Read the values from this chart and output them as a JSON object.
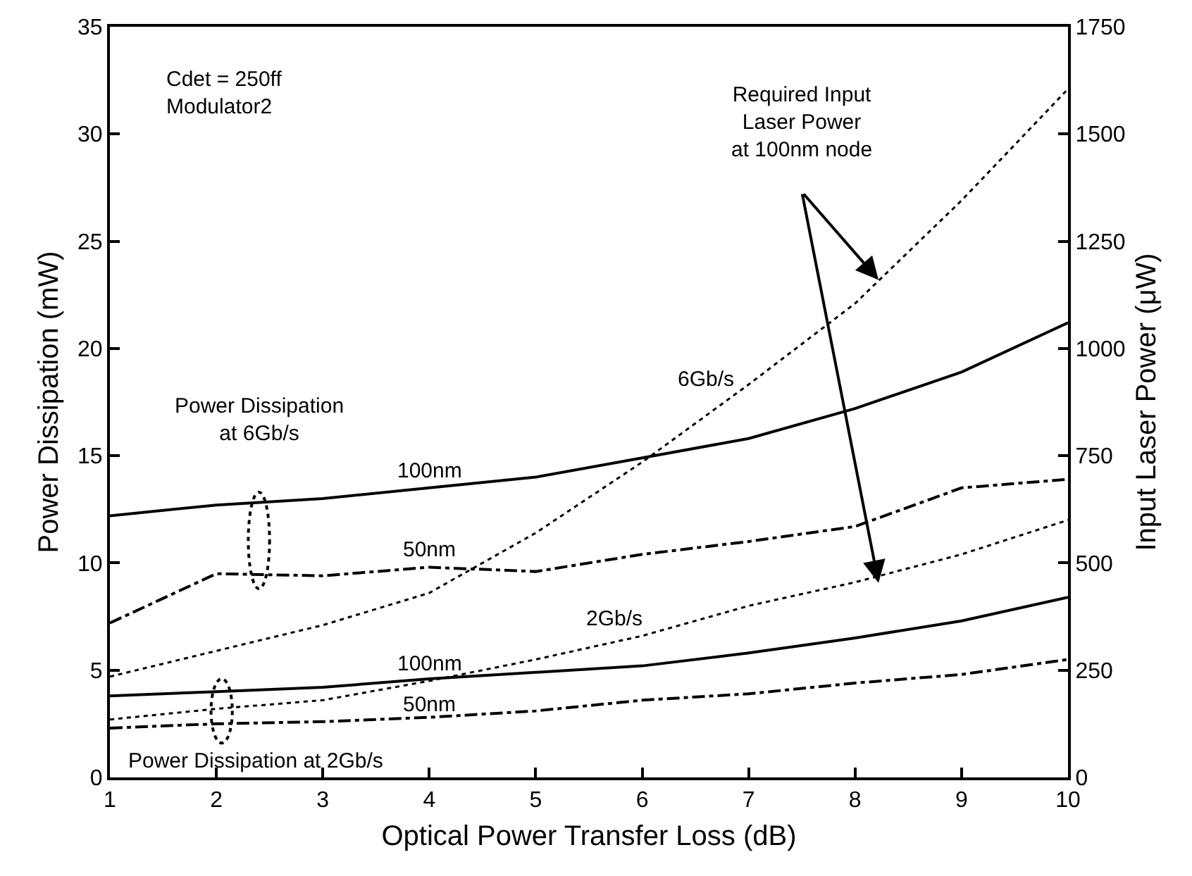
{
  "chart_data": {
    "type": "line",
    "xlabel": "Optical Power Transfer Loss (dB)",
    "ylabel": "Power Dissipation (mW)",
    "y2label": "Input Laser Power (μW)",
    "x": [
      1,
      2,
      3,
      4,
      5,
      6,
      7,
      8,
      9,
      10
    ],
    "series": [
      {
        "name": "100nm",
        "color": "#000000",
        "line_style": "solid",
        "values": [
          12.2,
          12.7,
          13.0,
          13.5,
          14.0,
          14.9,
          15.8,
          17.2,
          18.9,
          21.2
        ]
      },
      {
        "name": "50nm",
        "color": "#000000",
        "line_style": "dashed",
        "values": [
          7.2,
          9.5,
          9.4,
          9.8,
          9.6,
          10.4,
          11.0,
          11.7,
          13.5,
          13.9
        ]
      },
      {
        "name": "100nm",
        "color": "#000000",
        "line_style": "solid",
        "values": [
          3.8,
          4.0,
          4.2,
          4.6,
          4.9,
          5.2,
          5.8,
          6.5,
          7.3,
          8.4
        ]
      },
      {
        "name": "50nm",
        "color": "#000000",
        "line_style": "dashed",
        "values": [
          2.3,
          2.5,
          2.6,
          2.8,
          3.1,
          3.6,
          3.9,
          4.4,
          4.8,
          5.5
        ]
      },
      {
        "name": "6Gb/s",
        "color": "#000000",
        "line_style": "dotted",
        "axis": "y2",
        "values": [
          235,
          295,
          355,
          430,
          570,
          735,
          916,
          1105,
          1345,
          1605
        ]
      },
      {
        "name": "2Gb/s",
        "color": "#000000",
        "line_style": "dotted",
        "axis": "y2",
        "values": [
          135,
          160,
          180,
          225,
          275,
          330,
          400,
          455,
          520,
          600
        ]
      }
    ],
    "xlim": [
      1,
      10
    ],
    "xticks": [
      1,
      2,
      3,
      4,
      5,
      6,
      7,
      8,
      9,
      10
    ],
    "ylim": [
      0,
      35
    ],
    "yticks": [
      0,
      5,
      10,
      15,
      20,
      25,
      30,
      35
    ],
    "y2lim": [
      0,
      1750
    ],
    "y2ticks": [
      0,
      250,
      500,
      750,
      1000,
      1250,
      1500,
      1750
    ],
    "annotations": [
      "Cdet = 250ff\nModulator2",
      "Required Input\nLaser Power\nat 100nm node",
      "Power Dissipation\nat 6Gb/s",
      "Power Dissipation at 2Gb/s"
    ],
    "grid": false,
    "legend": false,
    "marker": "none"
  }
}
